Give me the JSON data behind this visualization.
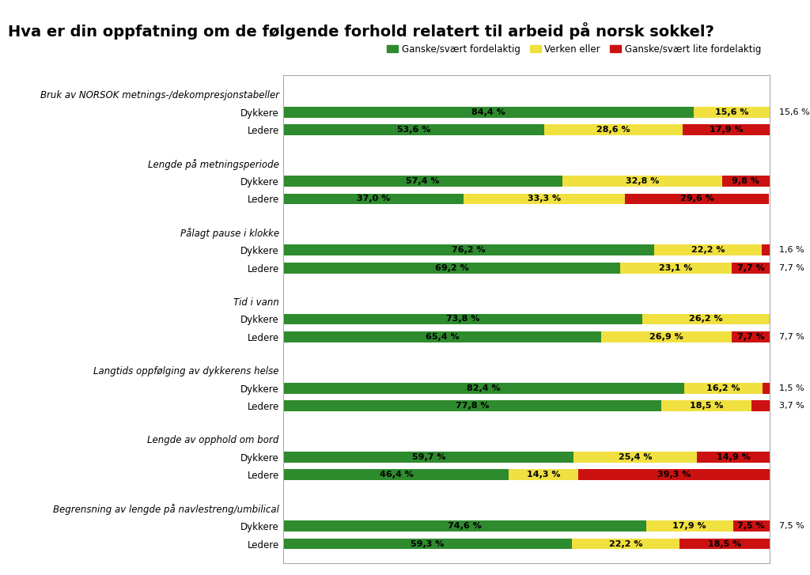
{
  "title": "Hva er din oppfatning om de følgende forhold relatert til arbeid på norsk sokkel?",
  "legend_labels": [
    "Ganske/svært fordelaktig",
    "Verken eller",
    "Ganske/svært lite fordelaktig"
  ],
  "colors": [
    "#2e8b2e",
    "#f0e040",
    "#cc1111"
  ],
  "rows": [
    {
      "category": "Bruk av NORSOK metnings-/dekompresjonstabeller",
      "dykkere": [
        84.4,
        0.0,
        0.0
      ],
      "ledere": [
        53.6,
        28.6,
        17.9
      ],
      "dykkere_yellow": 0.0,
      "dykkere_red": 0.0,
      "dykkere_outside_note": "15,6 %",
      "dykkere_outside_color": "#f0e040",
      "ledere_outside_note": null,
      "ledere_outside_color": null,
      "dykkere_yellow_val": 15.6,
      "dykkere_red_val": 0.0
    },
    {
      "category": "Lengde på metningsperiode",
      "dykkere": [
        57.4,
        32.8,
        9.8
      ],
      "ledere": [
        37.0,
        33.3,
        29.6
      ],
      "dykkere_outside_note": null,
      "ledere_outside_note": null,
      "dykkere_yellow_val": 32.8,
      "dykkere_red_val": 9.8
    },
    {
      "category": "Pålagt pause i klokke",
      "dykkere": [
        76.2,
        22.2,
        0.0
      ],
      "ledere": [
        69.2,
        23.1,
        0.0
      ],
      "dykkere_outside_note": "1,6 %",
      "dykkere_outside_color": "#cc1111",
      "ledere_outside_note": "7,7 %",
      "ledere_outside_color": "#cc1111",
      "dykkere_yellow_val": 22.2,
      "dykkere_red_val": 1.6,
      "ledere_yellow_val": 23.1,
      "ledere_red_val": 7.7
    },
    {
      "category": "Tid i vann",
      "dykkere": [
        73.8,
        26.2,
        0.0
      ],
      "ledere": [
        65.4,
        26.9,
        0.0
      ],
      "dykkere_outside_note": null,
      "ledere_outside_note": "7,7 %",
      "ledere_outside_color": "#cc1111",
      "dykkere_yellow_val": 26.2,
      "dykkere_red_val": 0.0,
      "ledere_yellow_val": 26.9,
      "ledere_red_val": 7.7
    },
    {
      "category": "Langtids oppfølging av dykkerens helse",
      "dykkere": [
        82.4,
        16.2,
        0.0
      ],
      "ledere": [
        77.8,
        18.5,
        0.0
      ],
      "dykkere_outside_note": "1,5 %",
      "dykkere_outside_color": "#cc1111",
      "ledere_outside_note": "3,7 %",
      "ledere_outside_color": "#cc1111",
      "dykkere_yellow_val": 16.2,
      "dykkere_red_val": 1.5,
      "ledere_yellow_val": 18.5,
      "ledere_red_val": 3.7
    },
    {
      "category": "Lengde av opphold om bord",
      "dykkere": [
        59.7,
        25.4,
        14.9
      ],
      "ledere": [
        46.4,
        14.3,
        39.3
      ],
      "dykkere_outside_note": null,
      "ledere_outside_note": null,
      "dykkere_yellow_val": 25.4,
      "dykkere_red_val": 14.9,
      "ledere_yellow_val": 14.3,
      "ledere_red_val": 39.3
    },
    {
      "category": "Begrensning av lengde på navlestreng/umbilical",
      "dykkere": [
        74.6,
        17.9,
        0.0
      ],
      "ledere": [
        59.3,
        22.2,
        18.5
      ],
      "dykkere_outside_note": "7,5 %",
      "dykkere_outside_color": "#cc1111",
      "ledere_outside_note": null,
      "dykkere_yellow_val": 17.9,
      "dykkere_red_val": 7.5,
      "ledere_yellow_val": 22.2,
      "ledere_red_val": 18.5
    }
  ],
  "bar_height": 0.55,
  "figure_bg": "#ffffff",
  "plot_bg": "#ffffff",
  "title_fontsize": 14,
  "label_fontsize": 8.5,
  "bar_label_fontsize": 8,
  "legend_fontsize": 8.5
}
